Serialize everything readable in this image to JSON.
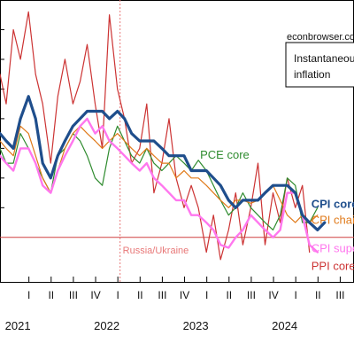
{
  "chart_data": {
    "type": "line",
    "watermark": "econbrowser.com",
    "legend_box": {
      "line1": "Instantaneous",
      "line2": "inflation",
      "placement": "top-right"
    },
    "annotation": {
      "label": "Russia/Ukraine",
      "x": 2022.15,
      "color": "#e87878"
    },
    "zero_line_y": 0,
    "x_axis": {
      "xlim": [
        2020.8,
        2024.78
      ],
      "quarter_ticks": [
        {
          "x": 2021.125,
          "label": "I"
        },
        {
          "x": 2021.375,
          "label": "II"
        },
        {
          "x": 2021.625,
          "label": "III"
        },
        {
          "x": 2021.875,
          "label": "IV"
        },
        {
          "x": 2022.125,
          "label": "I"
        },
        {
          "x": 2022.375,
          "label": "II"
        },
        {
          "x": 2022.625,
          "label": "III"
        },
        {
          "x": 2022.875,
          "label": "IV"
        },
        {
          "x": 2023.125,
          "label": "I"
        },
        {
          "x": 2023.375,
          "label": "II"
        },
        {
          "x": 2023.625,
          "label": "III"
        },
        {
          "x": 2023.875,
          "label": "IV"
        },
        {
          "x": 2024.125,
          "label": "I"
        },
        {
          "x": 2024.375,
          "label": "II"
        },
        {
          "x": 2024.625,
          "label": "III"
        }
      ],
      "year_labels": [
        {
          "x": 2021.0,
          "label": "2021"
        },
        {
          "x": 2022.0,
          "label": "2022"
        },
        {
          "x": 2023.0,
          "label": "2023"
        },
        {
          "x": 2024.0,
          "label": "2024"
        }
      ]
    },
    "ylim": [
      -3,
      16
    ],
    "series": [
      {
        "name": "PPI core",
        "color": "#cc3333",
        "width": 1.2,
        "label": {
          "text": "PPI core",
          "x": 2024.3,
          "y": -2.2
        },
        "x": [
          2020.8,
          2020.87,
          2020.95,
          2021.03,
          2021.12,
          2021.2,
          2021.28,
          2021.37,
          2021.45,
          2021.53,
          2021.62,
          2021.7,
          2021.78,
          2021.87,
          2021.95,
          2022.03,
          2022.12,
          2022.2,
          2022.28,
          2022.37,
          2022.45,
          2022.53,
          2022.62,
          2022.7,
          2022.78,
          2022.87,
          2022.95,
          2023.03,
          2023.12,
          2023.2,
          2023.28,
          2023.37,
          2023.45,
          2023.53,
          2023.62,
          2023.7,
          2023.78,
          2023.87,
          2023.95,
          2024.03,
          2024.12,
          2024.2,
          2024.28
        ],
        "y": [
          11,
          9,
          14,
          12,
          15.2,
          11,
          9,
          5,
          9.5,
          12,
          9,
          10.5,
          13,
          9,
          6,
          15,
          10,
          8,
          5,
          6,
          9,
          3,
          5,
          8,
          4,
          2,
          3.5,
          2,
          -1,
          1.5,
          -1.5,
          0.5,
          3,
          -0.5,
          2,
          5,
          -0.5,
          3,
          1,
          4,
          2,
          3.5,
          -1
        ]
      },
      {
        "name": "PCE core",
        "color": "#2e8b2e",
        "width": 1.2,
        "label": {
          "text": "PCE core",
          "x": 2023.05,
          "y": 5.3
        },
        "x": [
          2020.8,
          2020.87,
          2020.95,
          2021.03,
          2021.12,
          2021.2,
          2021.28,
          2021.37,
          2021.45,
          2021.53,
          2021.62,
          2021.7,
          2021.78,
          2021.87,
          2021.95,
          2022.03,
          2022.12,
          2022.2,
          2022.28,
          2022.37,
          2022.45,
          2022.53,
          2022.62,
          2022.7,
          2022.78,
          2022.87,
          2022.95,
          2023.03,
          2023.12,
          2023.2,
          2023.28,
          2023.37,
          2023.45,
          2023.53,
          2023.62,
          2023.7,
          2023.78,
          2023.87,
          2023.95,
          2024.03,
          2024.12,
          2024.2,
          2024.28,
          2024.37
        ],
        "y": [
          6,
          5,
          5,
          7,
          6,
          5,
          4,
          3,
          5.5,
          6,
          7,
          6.5,
          5.5,
          4,
          3.5,
          6,
          7.5,
          6.5,
          5.5,
          5,
          6,
          5,
          4.5,
          5,
          5.5,
          5,
          4.5,
          5.2,
          4.5,
          3.5,
          2.5,
          1.5,
          2,
          3,
          2,
          1.5,
          1,
          0.5,
          1.5,
          4,
          3.5,
          1,
          1,
          2
        ]
      },
      {
        "name": "CPI chained",
        "color": "#e07a1a",
        "width": 1.2,
        "label": {
          "text": "CPI chained",
          "x": 2024.3,
          "y": 0.9
        },
        "x": [
          2020.8,
          2020.87,
          2020.95,
          2021.03,
          2021.12,
          2021.2,
          2021.28,
          2021.37,
          2021.45,
          2021.53,
          2021.62,
          2021.7,
          2021.78,
          2021.87,
          2021.95,
          2022.03,
          2022.12,
          2022.2,
          2022.28,
          2022.37,
          2022.45,
          2022.53,
          2022.62,
          2022.7,
          2022.78,
          2022.87,
          2022.95,
          2023.03,
          2023.12,
          2023.2,
          2023.28,
          2023.37,
          2023.45,
          2023.53,
          2023.62,
          2023.7,
          2023.78,
          2023.87,
          2023.95,
          2024.03,
          2024.12,
          2024.2,
          2024.28,
          2024.37
        ],
        "y": [
          6.5,
          6,
          5.5,
          7.5,
          7,
          5.5,
          4,
          3,
          4.5,
          6,
          7,
          7.5,
          7,
          6.5,
          6,
          6.5,
          7,
          6.5,
          6,
          5.5,
          6,
          5.5,
          5,
          5,
          4,
          4.5,
          4,
          4,
          3.5,
          3,
          2.5,
          2,
          2.5,
          2.5,
          2.3,
          2.5,
          3,
          3.5,
          2.5,
          1.5,
          1,
          1.5,
          1,
          1.5
        ]
      },
      {
        "name": "CPI supercore",
        "color": "#ff77ee",
        "width": 2.4,
        "label": {
          "text": "CPI supercore",
          "x": 2024.3,
          "y": -1.0
        },
        "x": [
          2020.8,
          2020.87,
          2020.95,
          2021.03,
          2021.12,
          2021.2,
          2021.28,
          2021.37,
          2021.45,
          2021.53,
          2021.62,
          2021.7,
          2021.78,
          2021.87,
          2021.95,
          2022.03,
          2022.12,
          2022.2,
          2022.28,
          2022.37,
          2022.45,
          2022.53,
          2022.62,
          2022.7,
          2022.78,
          2022.87,
          2022.95,
          2023.03,
          2023.12,
          2023.2,
          2023.28,
          2023.37,
          2023.45,
          2023.53,
          2023.62,
          2023.7,
          2023.78,
          2023.87,
          2023.95,
          2024.03,
          2024.12,
          2024.2,
          2024.28,
          2024.37
        ],
        "y": [
          5.5,
          5,
          4.5,
          6,
          6,
          5,
          3.5,
          3,
          4.5,
          5.5,
          6.5,
          7.5,
          8,
          7,
          7.5,
          6.5,
          6,
          5.5,
          5,
          4.5,
          5,
          4,
          3.5,
          3,
          2.5,
          2.5,
          1.5,
          1.5,
          1,
          0.5,
          -0.5,
          -0.7,
          0,
          0.5,
          1.5,
          1,
          0.5,
          0,
          0.5,
          3,
          3,
          1.5,
          -0.5,
          -1
        ]
      },
      {
        "name": "CPI core",
        "color": "#1f4e8c",
        "width": 3.2,
        "label": {
          "text": "CPI core",
          "x": 2024.3,
          "y": 2.0
        },
        "x": [
          2020.8,
          2020.87,
          2020.95,
          2021.03,
          2021.12,
          2021.2,
          2021.28,
          2021.37,
          2021.45,
          2021.53,
          2021.62,
          2021.7,
          2021.78,
          2021.87,
          2021.95,
          2022.03,
          2022.12,
          2022.2,
          2022.28,
          2022.37,
          2022.45,
          2022.53,
          2022.62,
          2022.7,
          2022.78,
          2022.87,
          2022.95,
          2023.03,
          2023.12,
          2023.2,
          2023.28,
          2023.37,
          2023.45,
          2023.53,
          2023.62,
          2023.7,
          2023.78,
          2023.87,
          2023.95,
          2024.03,
          2024.12,
          2024.2,
          2024.28,
          2024.37,
          2024.45
        ],
        "y": [
          7,
          6.5,
          6,
          8,
          9.5,
          8,
          5,
          4,
          5.5,
          6.5,
          7.5,
          8,
          8.5,
          8.5,
          8.5,
          8,
          8.5,
          8,
          7,
          6.5,
          6.5,
          6.5,
          6,
          5.5,
          5.5,
          5.5,
          4.5,
          4.5,
          4.5,
          4,
          3.5,
          2.5,
          2,
          2.5,
          2.5,
          2.5,
          3,
          3.5,
          3.5,
          3.5,
          3,
          1.5,
          1,
          0.5,
          1
        ]
      }
    ]
  }
}
